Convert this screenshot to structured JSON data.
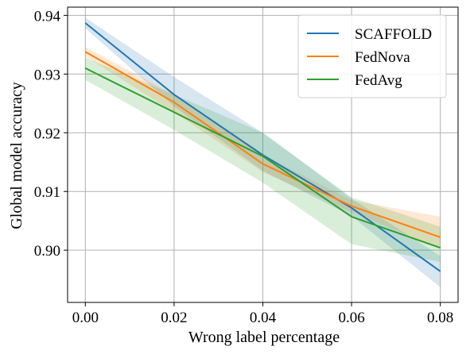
{
  "chart_data": {
    "type": "line",
    "title": "",
    "xlabel": "Wrong label percentage",
    "ylabel": "Global model accuracy",
    "x": [
      0.0,
      0.02,
      0.04,
      0.06,
      0.08
    ],
    "xlim": [
      -0.004,
      0.084
    ],
    "ylim": [
      0.8911,
      0.9414
    ],
    "xticks": [
      0.0,
      0.02,
      0.04,
      0.06,
      0.08
    ],
    "xtick_labels": [
      "0.00",
      "0.02",
      "0.04",
      "0.06",
      "0.08"
    ],
    "yticks": [
      0.9,
      0.91,
      0.92,
      0.93,
      0.94
    ],
    "ytick_labels": [
      "0.90",
      "0.91",
      "0.92",
      "0.93",
      "0.94"
    ],
    "grid": true,
    "legend_position": "top-right",
    "series": [
      {
        "name": "SCAFFOLD",
        "color": "#1f77b4",
        "values": [
          0.9387,
          0.9265,
          0.9162,
          0.9072,
          0.8964
        ],
        "lower": [
          0.9378,
          0.9245,
          0.9135,
          0.9058,
          0.8937
        ],
        "upper": [
          0.9396,
          0.9295,
          0.92,
          0.9088,
          0.899
        ]
      },
      {
        "name": "FedNova",
        "color": "#ff7f0e",
        "values": [
          0.9338,
          0.9252,
          0.9147,
          0.9075,
          0.9022
        ],
        "lower": [
          0.933,
          0.9235,
          0.9133,
          0.9065,
          0.9003
        ],
        "upper": [
          0.9346,
          0.9265,
          0.9162,
          0.9085,
          0.9057
        ]
      },
      {
        "name": "FedAvg",
        "color": "#2ca02c",
        "values": [
          0.931,
          0.9235,
          0.916,
          0.9057,
          0.9004
        ],
        "lower": [
          0.929,
          0.9205,
          0.9115,
          0.901,
          0.898
        ],
        "upper": [
          0.9328,
          0.9265,
          0.92,
          0.909,
          0.904
        ]
      }
    ]
  }
}
